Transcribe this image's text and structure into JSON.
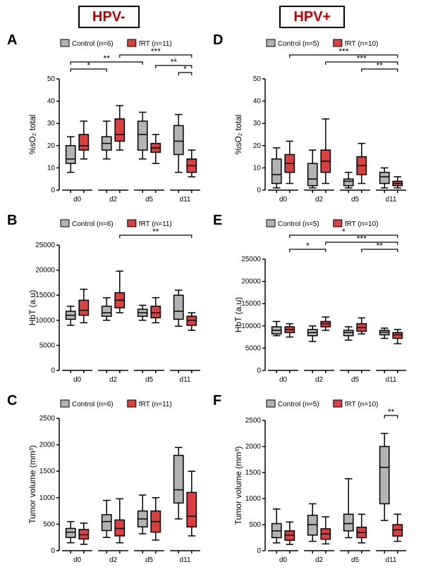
{
  "layout": {
    "left_title": "HPV-",
    "right_title": "HPV+",
    "panel_letters": [
      "A",
      "B",
      "C",
      "D",
      "E",
      "F"
    ],
    "colors": {
      "control_fill": "#b3b3b3",
      "control_stroke": "#000000",
      "frt_fill": "#d94141",
      "frt_stroke": "#000000",
      "axis": "#000000",
      "text": "#000000",
      "bg": "#ffffff"
    },
    "font": {
      "axis_label_size": 12,
      "tick_size": 10,
      "legend_size": 10,
      "sig_size": 12
    }
  },
  "charts": {
    "A": {
      "ylabel": "%sO₂ total",
      "ylim": [
        0,
        50
      ],
      "ytick_step": 10,
      "x_categories": [
        "d0",
        "d2",
        "d5",
        "d11"
      ],
      "legend": {
        "control": "Control (n=6)",
        "frt": "fRT (n=11)"
      },
      "series": {
        "control": [
          {
            "min": 8,
            "q1": 12,
            "med": 14,
            "q3": 20,
            "max": 24
          },
          {
            "min": 14,
            "q1": 18,
            "med": 21,
            "q3": 24,
            "max": 31
          },
          {
            "min": 14,
            "q1": 18,
            "med": 25,
            "q3": 31,
            "max": 35
          },
          {
            "min": 8,
            "q1": 16,
            "med": 22,
            "q3": 29,
            "max": 34
          }
        ],
        "frt": [
          {
            "min": 14,
            "q1": 18,
            "med": 20,
            "q3": 25,
            "max": 31
          },
          {
            "min": 18,
            "q1": 22,
            "med": 25,
            "q3": 32,
            "max": 38
          },
          {
            "min": 12,
            "q1": 17,
            "med": 19,
            "q3": 21,
            "max": 25
          },
          {
            "min": 6,
            "q1": 8,
            "med": 11,
            "q3": 14,
            "max": 18
          }
        ]
      },
      "sig": [
        {
          "from": "d0.c",
          "to": "d2.c",
          "label": "*",
          "level": 1
        },
        {
          "from": "d0.c",
          "to": "d5.c",
          "label": "**",
          "level": 2
        },
        {
          "from": "d2.f",
          "to": "d11.f",
          "label": "***",
          "level": 3
        },
        {
          "from": "d5.f",
          "to": "d11.f",
          "label": "**",
          "level": 1.5
        },
        {
          "from": "d11.c",
          "to": "d11.f",
          "label": "*",
          "level": 0.5
        }
      ]
    },
    "B": {
      "ylabel": "HbT (a.u)",
      "ylim": [
        0,
        25000
      ],
      "ytick_step": 5000,
      "x_categories": [
        "d0",
        "d2",
        "d5",
        "d11"
      ],
      "legend": {
        "control": "Control (n=6)",
        "frt": "fRT (n=11)"
      },
      "series": {
        "control": [
          {
            "min": 9000,
            "q1": 10200,
            "med": 11000,
            "q3": 11800,
            "max": 12800
          },
          {
            "min": 10000,
            "q1": 10800,
            "med": 11500,
            "q3": 12800,
            "max": 14500
          },
          {
            "min": 10000,
            "q1": 10800,
            "med": 11500,
            "q3": 12200,
            "max": 13000
          },
          {
            "min": 8800,
            "q1": 10200,
            "med": 11800,
            "q3": 15000,
            "max": 16000
          }
        ],
        "frt": [
          {
            "min": 9500,
            "q1": 11000,
            "med": 12000,
            "q3": 14000,
            "max": 16200
          },
          {
            "min": 11500,
            "q1": 12500,
            "med": 14000,
            "q3": 15500,
            "max": 19800
          },
          {
            "min": 9500,
            "q1": 10500,
            "med": 11500,
            "q3": 12800,
            "max": 14500
          },
          {
            "min": 8000,
            "q1": 9000,
            "med": 10000,
            "q3": 10800,
            "max": 11500
          }
        ]
      },
      "sig": [
        {
          "from": "d2.f",
          "to": "d11.f",
          "label": "**",
          "level": 1
        }
      ]
    },
    "C": {
      "ylabel": "Tumor volume (mm³)",
      "ylim": [
        0,
        2500
      ],
      "ytick_step": 500,
      "x_categories": [
        "d0",
        "d2",
        "d5",
        "d11"
      ],
      "legend": {
        "control": "Control (n=6)",
        "frt": "fRT (n=11)"
      },
      "series": {
        "control": [
          {
            "min": 150,
            "q1": 250,
            "med": 350,
            "q3": 420,
            "max": 550
          },
          {
            "min": 250,
            "q1": 380,
            "med": 550,
            "q3": 680,
            "max": 950
          },
          {
            "min": 320,
            "q1": 450,
            "med": 600,
            "q3": 750,
            "max": 1050
          },
          {
            "min": 600,
            "q1": 900,
            "med": 1150,
            "q3": 1800,
            "max": 1950
          }
        ],
        "frt": [
          {
            "min": 120,
            "q1": 220,
            "med": 300,
            "q3": 400,
            "max": 520
          },
          {
            "min": 150,
            "q1": 280,
            "med": 420,
            "q3": 580,
            "max": 980
          },
          {
            "min": 200,
            "q1": 350,
            "med": 550,
            "q3": 750,
            "max": 1000
          },
          {
            "min": 280,
            "q1": 450,
            "med": 650,
            "q3": 1100,
            "max": 1500
          }
        ]
      },
      "sig": []
    },
    "D": {
      "ylabel": "%sO₂ total",
      "ylim": [
        0,
        50
      ],
      "ytick_step": 10,
      "x_categories": [
        "d0",
        "d2",
        "d5",
        "d11"
      ],
      "legend": {
        "control": "Control (n=5)",
        "frt": "fRT (n=10)"
      },
      "series": {
        "control": [
          {
            "min": 1,
            "q1": 3,
            "med": 7,
            "q3": 14,
            "max": 19
          },
          {
            "min": 1,
            "q1": 2,
            "med": 5,
            "q3": 12,
            "max": 18
          },
          {
            "min": 1,
            "q1": 2,
            "med": 4,
            "q3": 5,
            "max": 8
          },
          {
            "min": 1,
            "q1": 3,
            "med": 6,
            "q3": 8,
            "max": 10
          }
        ],
        "frt": [
          {
            "min": 3,
            "q1": 8,
            "med": 12,
            "q3": 16,
            "max": 22
          },
          {
            "min": 3,
            "q1": 8,
            "med": 13,
            "q3": 18,
            "max": 32
          },
          {
            "min": 3,
            "q1": 7,
            "med": 11,
            "q3": 15,
            "max": 21
          },
          {
            "min": 1,
            "q1": 2,
            "med": 3,
            "q3": 4,
            "max": 6
          }
        ]
      },
      "sig": [
        {
          "from": "d0.f",
          "to": "d11.f",
          "label": "***",
          "level": 3
        },
        {
          "from": "d2.f",
          "to": "d11.f",
          "label": "***",
          "level": 2
        },
        {
          "from": "d5.f",
          "to": "d11.f",
          "label": "**",
          "level": 1
        }
      ]
    },
    "E": {
      "ylabel": "HbT (a.u)",
      "ylim": [
        0,
        25000
      ],
      "ytick_step": 5000,
      "x_categories": [
        "d0",
        "d2",
        "d5",
        "d11"
      ],
      "legend": {
        "control": "Control (n=5)",
        "frt": "fRT (n=10)"
      },
      "series": {
        "control": [
          {
            "min": 7800,
            "q1": 8200,
            "med": 9000,
            "q3": 9800,
            "max": 11000
          },
          {
            "min": 6500,
            "q1": 7800,
            "med": 8500,
            "q3": 9200,
            "max": 10000
          },
          {
            "min": 6800,
            "q1": 7800,
            "med": 8500,
            "q3": 9000,
            "max": 9800
          },
          {
            "min": 7200,
            "q1": 8000,
            "med": 8600,
            "q3": 9000,
            "max": 9500
          }
        ],
        "frt": [
          {
            "min": 7500,
            "q1": 8500,
            "med": 9200,
            "q3": 9800,
            "max": 10500
          },
          {
            "min": 9000,
            "q1": 9800,
            "med": 10500,
            "q3": 11000,
            "max": 12000
          },
          {
            "min": 8200,
            "q1": 8800,
            "med": 9600,
            "q3": 10500,
            "max": 11800
          },
          {
            "min": 6000,
            "q1": 7200,
            "med": 8000,
            "q3": 8500,
            "max": 9200
          }
        ]
      },
      "sig": [
        {
          "from": "d0.f",
          "to": "d2.f",
          "label": "*",
          "level": 1
        },
        {
          "from": "d0.f",
          "to": "d11.f",
          "label": "*",
          "level": 3
        },
        {
          "from": "d2.f",
          "to": "d11.f",
          "label": "***",
          "level": 2
        },
        {
          "from": "d5.f",
          "to": "d11.f",
          "label": "**",
          "level": 1
        }
      ]
    },
    "F": {
      "ylabel": "Tumor volume (mm³)",
      "ylim": [
        0,
        2500
      ],
      "ytick_step": 500,
      "x_categories": [
        "d0",
        "d2",
        "d5",
        "d11"
      ],
      "legend": {
        "control": "Control (n=5)",
        "frt": "fRT (n=10)"
      },
      "series": {
        "control": [
          {
            "min": 150,
            "q1": 250,
            "med": 380,
            "q3": 520,
            "max": 800
          },
          {
            "min": 180,
            "q1": 300,
            "med": 500,
            "q3": 680,
            "max": 900
          },
          {
            "min": 250,
            "q1": 380,
            "med": 520,
            "q3": 700,
            "max": 1380
          },
          {
            "min": 580,
            "q1": 900,
            "med": 1600,
            "q3": 2000,
            "max": 2250
          }
        ],
        "frt": [
          {
            "min": 120,
            "q1": 200,
            "med": 300,
            "q3": 380,
            "max": 550
          },
          {
            "min": 130,
            "q1": 220,
            "med": 320,
            "q3": 420,
            "max": 650
          },
          {
            "min": 150,
            "q1": 250,
            "med": 350,
            "q3": 450,
            "max": 700
          },
          {
            "min": 180,
            "q1": 280,
            "med": 400,
            "q3": 500,
            "max": 700
          }
        ]
      },
      "sig": [
        {
          "from": "d11.c",
          "to": "d11.f",
          "label": "**",
          "level": 0.3
        }
      ]
    }
  }
}
